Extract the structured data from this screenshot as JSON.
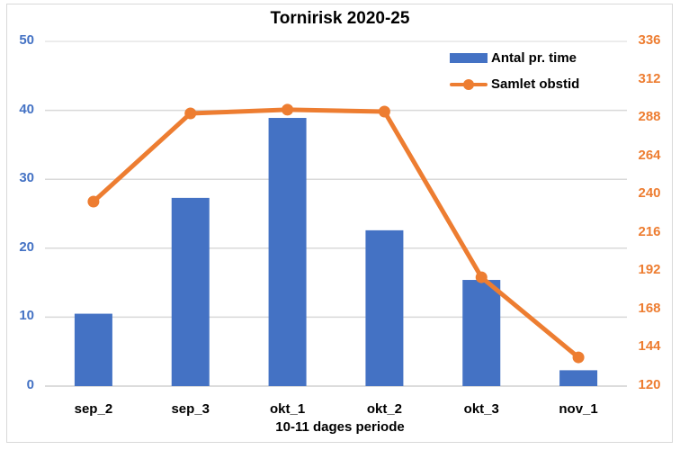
{
  "chart_data": {
    "type": "bar+line",
    "title": "Tornirisk 2020-25",
    "xlabel": "10-11 dages periode",
    "categories": [
      "sep_2",
      "sep_3",
      "okt_1",
      "okt_2",
      "okt_3",
      "nov_1"
    ],
    "series": [
      {
        "name": "Antal pr. time",
        "type": "bar",
        "axis": "left",
        "color": "#4472c4",
        "values": [
          10.5,
          27.3,
          38.9,
          22.6,
          15.4,
          2.3
        ]
      },
      {
        "name": "Samlet obstid",
        "type": "line",
        "axis": "right",
        "color": "#ed7d31",
        "values": [
          235.6,
          290.9,
          293.2,
          292.0,
          188.2,
          138.0
        ]
      }
    ],
    "ylim_left": [
      0,
      50
    ],
    "yticks_left": [
      "0",
      "10",
      "20",
      "30",
      "40",
      "50"
    ],
    "ylim_right": [
      120,
      336
    ],
    "yticks_right": [
      "120",
      "144",
      "168",
      "192",
      "216",
      "240",
      "264",
      "288",
      "312",
      "336"
    ],
    "grid": true,
    "legend_position": "top-right inside"
  },
  "legend": {
    "bar_label": "Antal pr. time",
    "line_label": "Samlet obstid"
  }
}
